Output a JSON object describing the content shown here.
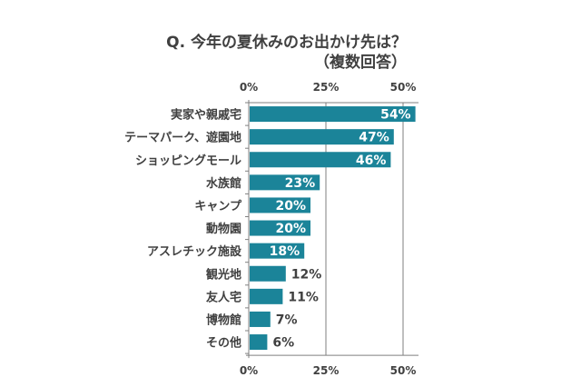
{
  "chart_data": {
    "type": "bar",
    "orientation": "horizontal",
    "title": "Q. 今年の夏休みのお出かけ先は？",
    "subtitle": "（複数回答）",
    "xlabel": "",
    "ylabel": "",
    "xlim": [
      0,
      55
    ],
    "x_ticks": [
      "0%",
      "25%",
      "50%"
    ],
    "tick_values": [
      0,
      25,
      50
    ],
    "grid": true,
    "categories": [
      "実家や親戚宅",
      "テーマパーク、遊園地",
      "ショッピングモール",
      "水族館",
      "キャンプ",
      "動物園",
      "アスレチック施設",
      "観光地",
      "友人宅",
      "博物館",
      "その他"
    ],
    "values": [
      54,
      47,
      46,
      23,
      20,
      20,
      18,
      12,
      11,
      7,
      6
    ],
    "data_labels": [
      "54%",
      "47%",
      "46%",
      "23%",
      "20%",
      "20%",
      "18%",
      "12%",
      "11%",
      "7%",
      "6%"
    ],
    "bar_color": "#1b8499"
  }
}
